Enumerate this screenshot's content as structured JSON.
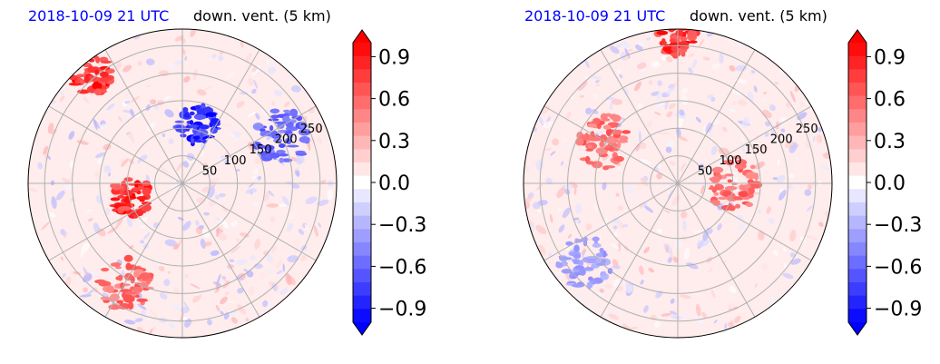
{
  "chart_data": [
    {
      "type": "heatmap",
      "projection": "polar",
      "title_left": "2018-10-09 21 UTC",
      "title_right": "down. vent. (5 km)",
      "radial_ticks": [
        "50",
        "100",
        "150",
        "200",
        "250"
      ],
      "radial_tick_values": [
        50,
        100,
        150,
        200,
        250
      ],
      "rmax": 280,
      "angular_grid_step_deg": 30,
      "colorbar": {
        "ticks": [
          "0.9",
          "0.6",
          "0.3",
          "0.0",
          "−0.3",
          "−0.6",
          "−0.9"
        ],
        "tick_values": [
          0.9,
          0.6,
          0.3,
          0.0,
          -0.3,
          -0.6,
          -0.9
        ],
        "range": [
          -1.0,
          1.0
        ],
        "levels": 21,
        "colormap": "bwr",
        "extend": "both"
      },
      "features": [
        {
          "sign": "positive",
          "strength": "strong",
          "azimuth_deg": 195,
          "radius": 95
        },
        {
          "sign": "negative",
          "strength": "strong",
          "azimuth_deg": 75,
          "radius": 110
        },
        {
          "sign": "negative",
          "strength": "medium",
          "azimuth_deg": 25,
          "radius": 200
        },
        {
          "sign": "positive",
          "strength": "medium",
          "azimuth_deg": 240,
          "radius": 210
        },
        {
          "sign": "positive",
          "strength": "strong",
          "azimuth_deg": 130,
          "radius": 255
        }
      ]
    },
    {
      "type": "heatmap",
      "projection": "polar",
      "title_left": "2018-10-09 21 UTC",
      "title_right": "down. vent. (5 km)",
      "radial_ticks": [
        "50",
        "100",
        "150",
        "200",
        "250"
      ],
      "radial_tick_values": [
        50,
        100,
        150,
        200,
        250
      ],
      "rmax": 280,
      "angular_grid_step_deg": 30,
      "colorbar": {
        "ticks": [
          "0.9",
          "0.6",
          "0.3",
          "0.0",
          "−0.3",
          "−0.6",
          "−0.9"
        ],
        "tick_values": [
          0.9,
          0.6,
          0.3,
          0.0,
          -0.3,
          -0.6,
          -0.9
        ],
        "range": [
          -1.0,
          1.0
        ],
        "levels": 21,
        "colormap": "bwr",
        "extend": "both"
      },
      "features": [
        {
          "sign": "positive",
          "strength": "strong",
          "azimuth_deg": 90,
          "radius": 265
        },
        {
          "sign": "positive",
          "strength": "medium",
          "azimuth_deg": 0,
          "radius": 100
        },
        {
          "sign": "positive",
          "strength": "medium",
          "azimuth_deg": 150,
          "radius": 150
        },
        {
          "sign": "negative",
          "strength": "weak",
          "azimuth_deg": 220,
          "radius": 220
        }
      ]
    }
  ]
}
